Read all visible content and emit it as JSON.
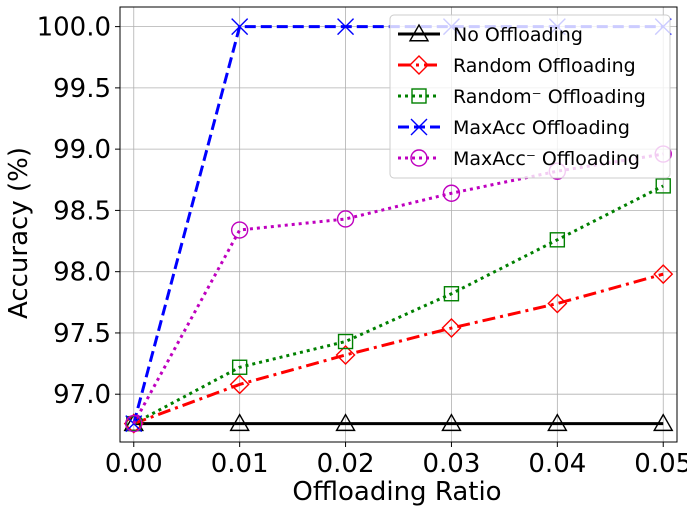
{
  "chart_data": {
    "type": "line",
    "xlabel": "Offloading Ratio",
    "ylabel": "Accuracy (%)",
    "x": [
      0.0,
      0.01,
      0.02,
      0.03,
      0.04,
      0.05
    ],
    "x_tick_labels": [
      "0.00",
      "0.01",
      "0.02",
      "0.03",
      "0.04",
      "0.05"
    ],
    "y_ticks": [
      97.0,
      97.5,
      98.0,
      98.5,
      99.0,
      99.5,
      100.0
    ],
    "y_tick_labels": [
      "97.0",
      "97.5",
      "98.0",
      "98.5",
      "99.0",
      "99.5",
      "100.0"
    ],
    "xlim": [
      -0.0013,
      0.0513
    ],
    "ylim": [
      96.61,
      100.16
    ],
    "grid": true,
    "legend_position": "top-right",
    "series": [
      {
        "name": "No Offloading",
        "color": "#000000",
        "dash": "solid",
        "marker": "triangle",
        "values": [
          96.76,
          96.76,
          96.76,
          96.76,
          96.76,
          96.76
        ]
      },
      {
        "name": "Random Offloading",
        "color": "#ff0000",
        "dash": "dashdot",
        "marker": "diamond",
        "values": [
          96.76,
          97.08,
          97.32,
          97.54,
          97.74,
          97.98
        ]
      },
      {
        "name": "Random⁻ Offloading",
        "color": "#008000",
        "dash": "dotted",
        "marker": "square",
        "values": [
          96.76,
          97.22,
          97.43,
          97.82,
          98.26,
          98.7
        ]
      },
      {
        "name": "MaxAcc Offloading",
        "color": "#0000ff",
        "dash": "dashed",
        "marker": "x",
        "values": [
          96.76,
          100.0,
          100.0,
          100.0,
          100.0,
          100.0
        ]
      },
      {
        "name": "MaxAcc⁻ Offloading",
        "color": "#bf00bf",
        "dash": "dotted",
        "marker": "circle",
        "values": [
          96.76,
          98.34,
          98.43,
          98.64,
          98.82,
          98.96
        ]
      }
    ]
  }
}
